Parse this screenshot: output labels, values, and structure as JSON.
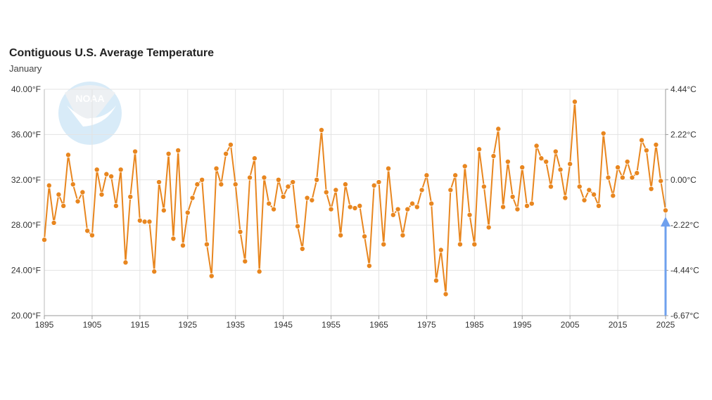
{
  "chart_data": {
    "type": "line",
    "title": "Contiguous U.S. Average Temperature",
    "subtitle": "January",
    "xlim": [
      1895,
      2025
    ],
    "ylim": [
      20,
      40
    ],
    "x_ticks": [
      "1895",
      "1905",
      "1915",
      "1925",
      "1935",
      "1945",
      "1955",
      "1965",
      "1975",
      "1985",
      "1995",
      "2005",
      "2015",
      "2025"
    ],
    "y_ticks_left": [
      "20.00°F",
      "24.00°F",
      "28.00°F",
      "32.00°F",
      "36.00°F",
      "40.00°F"
    ],
    "y_ticks_right": [
      "-6.67°C",
      "-4.44°C",
      "-2.22°C",
      "0.00°C",
      "2.22°C",
      "4.44°C"
    ],
    "grid": true,
    "line_color": "#e8861f",
    "marker_color": "#e8861f",
    "highlight_arrow_color": "#6fa0ee",
    "highlight_year": 2025,
    "logo": "NOAA",
    "x_start": 1895,
    "values": [
      26.7,
      31.5,
      28.2,
      30.7,
      29.7,
      34.2,
      31.6,
      30.1,
      30.9,
      27.5,
      27.1,
      32.9,
      30.7,
      32.5,
      32.3,
      29.7,
      32.9,
      24.7,
      30.5,
      34.5,
      28.4,
      28.3,
      28.3,
      23.9,
      31.8,
      29.3,
      34.3,
      26.8,
      34.6,
      26.2,
      29.1,
      30.4,
      31.6,
      32.0,
      26.3,
      23.5,
      33.0,
      31.6,
      34.3,
      35.1,
      31.6,
      27.4,
      24.8,
      32.2,
      33.9,
      23.9,
      32.2,
      29.9,
      29.4,
      32.0,
      30.5,
      31.4,
      31.8,
      27.9,
      25.9,
      30.4,
      30.2,
      32.0,
      36.4,
      30.9,
      29.4,
      31.1,
      27.1,
      31.6,
      29.6,
      29.5,
      29.7,
      27.0,
      24.4,
      31.5,
      31.8,
      26.3,
      33.0,
      28.9,
      29.4,
      27.1,
      29.4,
      29.9,
      29.6,
      31.1,
      32.4,
      29.9,
      23.1,
      25.8,
      21.9,
      31.1,
      32.4,
      26.3,
      33.2,
      28.9,
      26.3,
      34.7,
      31.4,
      27.8,
      34.1,
      36.5,
      29.6,
      33.6,
      30.5,
      29.4,
      33.1,
      29.7,
      29.9,
      35.0,
      33.9,
      33.6,
      31.4,
      34.5,
      32.9,
      30.4,
      33.4,
      38.9,
      31.4,
      30.2,
      31.1,
      30.7,
      29.7,
      36.1,
      32.2,
      30.6,
      33.1,
      32.2,
      33.6,
      32.2,
      32.6,
      35.5,
      34.6,
      31.2,
      35.1,
      31.9,
      29.3
    ]
  }
}
